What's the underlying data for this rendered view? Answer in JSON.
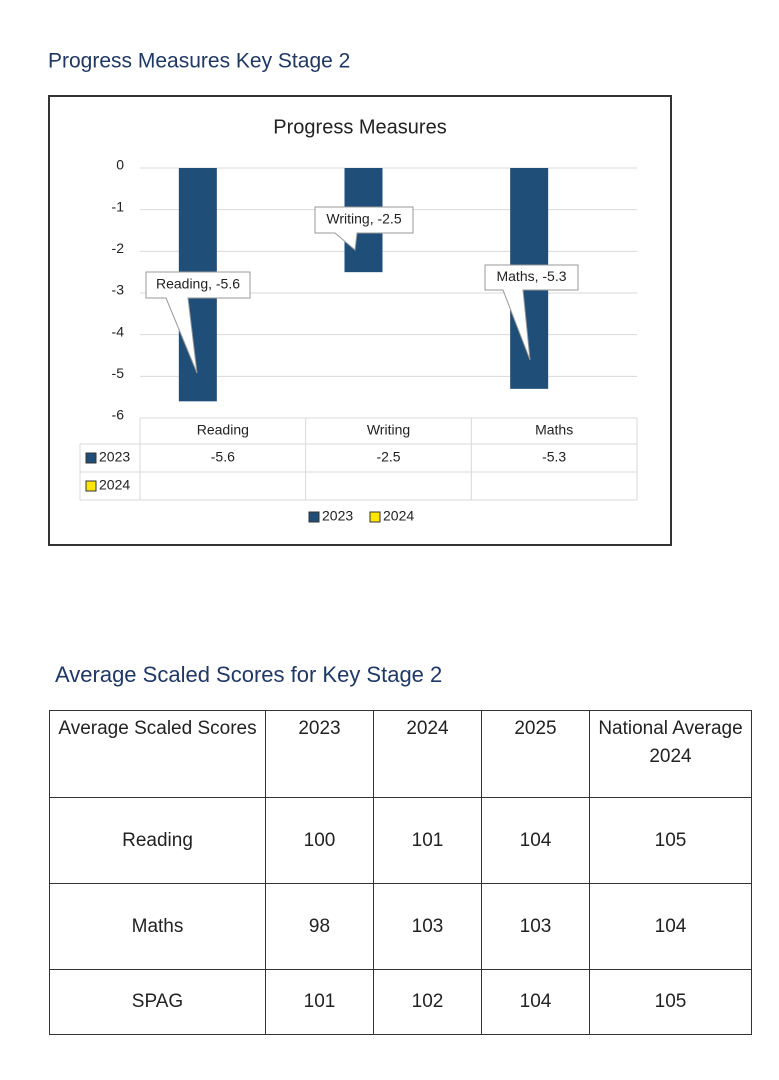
{
  "heading1": "Progress Measures Key Stage 2",
  "chart_data": {
    "type": "bar",
    "title": "Progress Measures",
    "categories": [
      "Reading",
      "Writing",
      "Maths"
    ],
    "series": [
      {
        "name": "2023",
        "color": "#1f4e79",
        "values": [
          -5.6,
          -2.5,
          -5.3
        ],
        "value_labels": [
          "Reading, -5.6",
          "Writing, -2.5",
          "Maths, -5.3"
        ]
      },
      {
        "name": "2024",
        "color": "#ffe600",
        "values": [
          null,
          null,
          null
        ]
      }
    ],
    "ylim": [
      -6,
      0
    ],
    "yticks": [
      0,
      -1,
      -2,
      -3,
      -4,
      -5,
      -6
    ],
    "grid": true,
    "legend": "bottom"
  },
  "heading2": "Average Scaled Scores for Key Stage 2",
  "table": {
    "header": [
      "Average Scaled Scores",
      "2023",
      "2024",
      "2025",
      "National Average 2024"
    ],
    "rows": [
      [
        "Reading",
        100,
        101,
        104,
        105
      ],
      [
        "Maths",
        98,
        103,
        103,
        104
      ],
      [
        "SPAG",
        101,
        102,
        104,
        105
      ]
    ]
  }
}
